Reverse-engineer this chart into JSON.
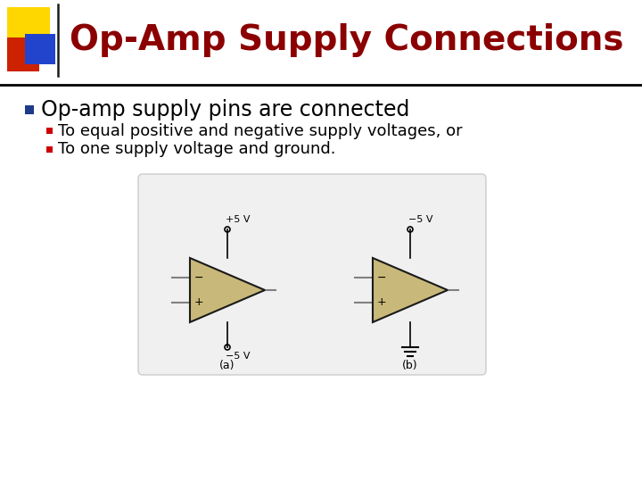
{
  "title": "Op-Amp Supply Connections",
  "title_color": "#8B0000",
  "title_fontsize": 28,
  "bg_color": "#FFFFFF",
  "header_bar_color": "#000000",
  "bullet_main": "Op-amp supply pins are connected",
  "bullet_main_color": "#000000",
  "bullet_main_fontsize": 17,
  "bullet_sub1": "To equal positive and negative supply voltages, or",
  "bullet_sub2": "To one supply voltage and ground.",
  "bullet_sub_color": "#000000",
  "bullet_sub_fontsize": 13,
  "bullet_square_color": "#1E3A8A",
  "bullet_sub_square_color": "#CC0000",
  "triangle_fill": "#C8B97A",
  "triangle_edge": "#1A1A1A",
  "wire_color": "#808080",
  "label_color": "#000000",
  "deco_yellow": "#FFD700",
  "deco_red": "#CC2200",
  "deco_blue": "#2244CC",
  "deco_line_color": "#1A1A1A",
  "circuit_a_top": "+5 V",
  "circuit_a_bot": "−5 V",
  "circuit_b_top": "−5 V",
  "circuit_a_label": "(a)",
  "circuit_b_label": "(b)"
}
